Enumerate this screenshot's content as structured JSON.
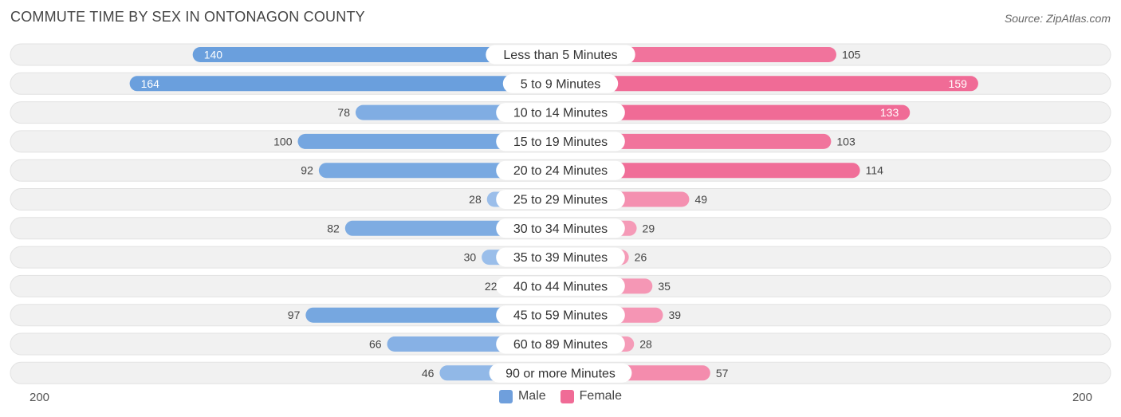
{
  "title": "COMMUTE TIME BY SEX IN ONTONAGON COUNTY",
  "source": "Source: ZipAtlas.com",
  "colors": {
    "male_strong": "#6a9fdd",
    "male_light": "#aac8ee",
    "female_strong": "#f06b96",
    "female_light": "#f7a9c2",
    "row_bg": "#f1f1f1",
    "row_border": "#e2e2e2"
  },
  "legend": [
    {
      "label": "Male",
      "color": "#6f9fdc"
    },
    {
      "label": "Female",
      "color": "#f06b96"
    }
  ],
  "axis": {
    "left_label": "200",
    "right_label": "200"
  },
  "chart_data": {
    "type": "bar",
    "orientation": "horizontal-diverging",
    "title": "COMMUTE TIME BY SEX IN ONTONAGON COUNTY",
    "xlim": [
      -200,
      200
    ],
    "categories": [
      "Less than 5 Minutes",
      "5 to 9 Minutes",
      "10 to 14 Minutes",
      "15 to 19 Minutes",
      "20 to 24 Minutes",
      "25 to 29 Minutes",
      "30 to 34 Minutes",
      "35 to 39 Minutes",
      "40 to 44 Minutes",
      "45 to 59 Minutes",
      "60 to 89 Minutes",
      "90 or more Minutes"
    ],
    "series": [
      {
        "name": "Male",
        "values": [
          140,
          164,
          78,
          100,
          92,
          28,
          82,
          30,
          22,
          97,
          66,
          46
        ]
      },
      {
        "name": "Female",
        "values": [
          105,
          159,
          133,
          103,
          114,
          49,
          29,
          26,
          35,
          39,
          28,
          57
        ]
      }
    ],
    "legend_position": "bottom-center"
  }
}
